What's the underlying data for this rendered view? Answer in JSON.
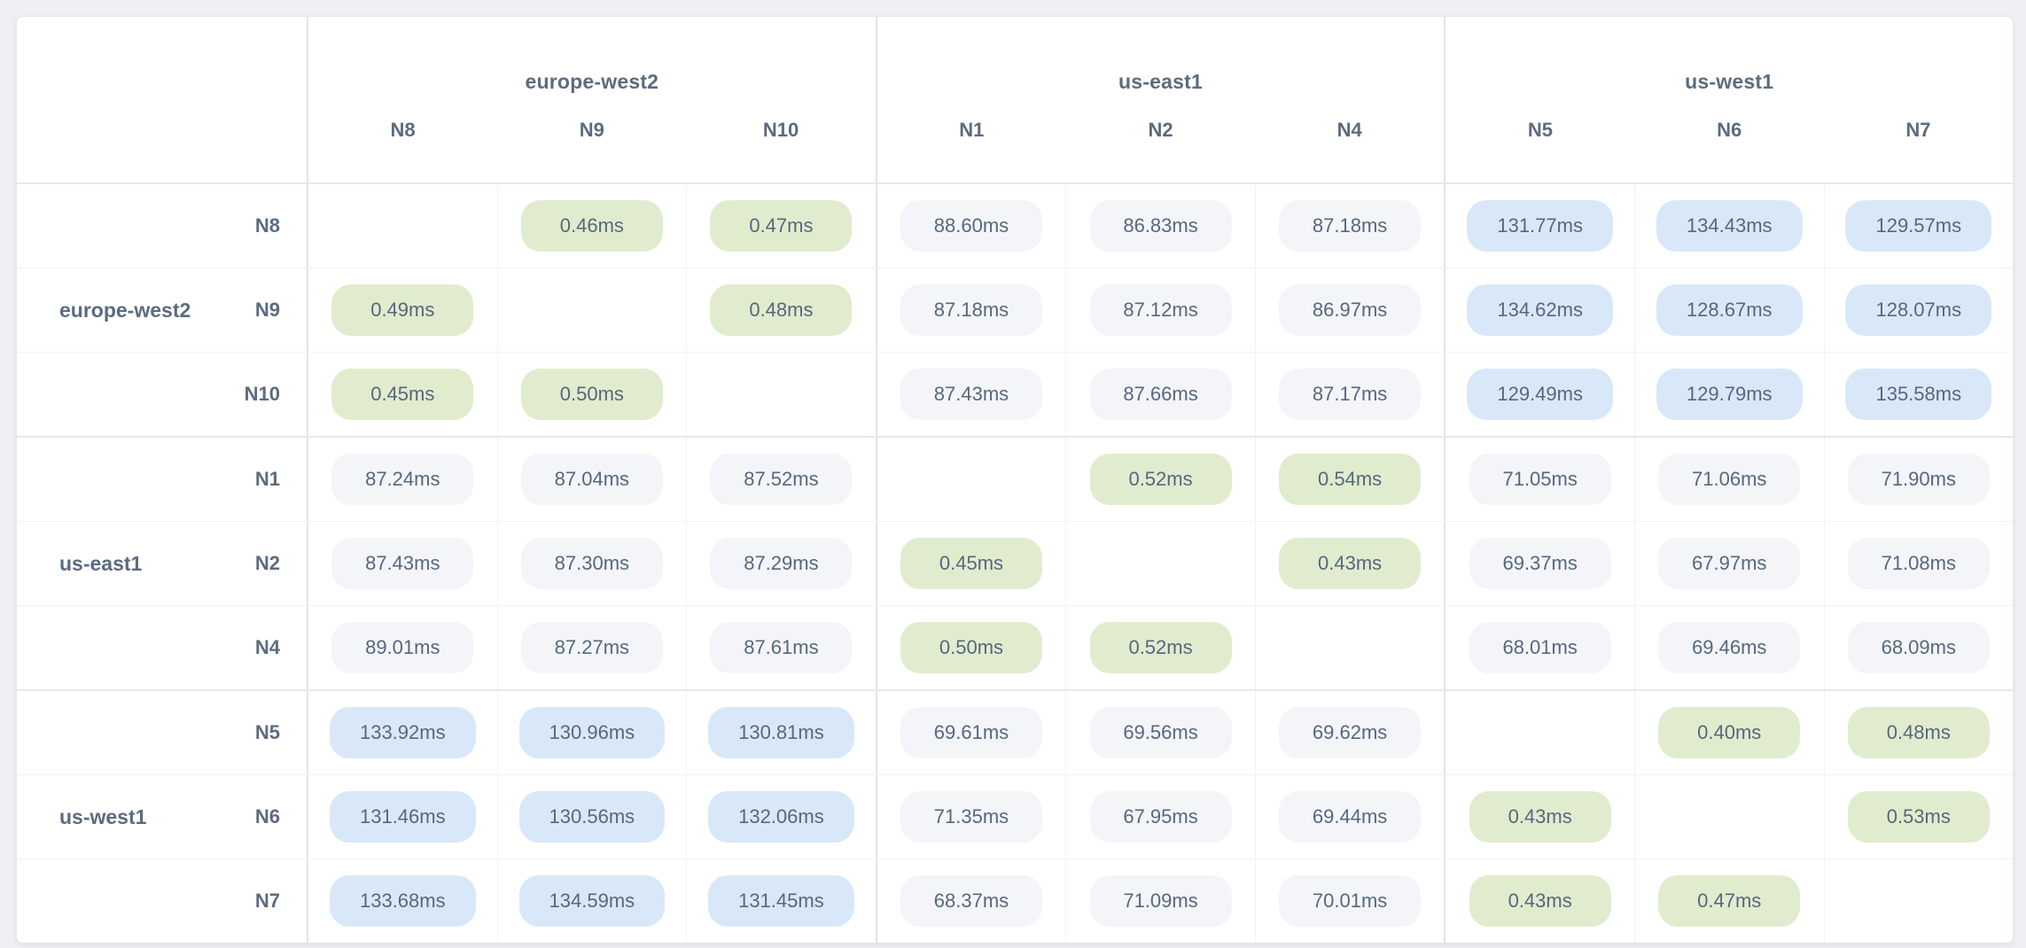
{
  "page": {
    "background": "#eef0f5",
    "card_background": "#ffffff"
  },
  "matrix": {
    "unit_suffix": "ms",
    "groups": [
      {
        "label": "europe-west2",
        "nodes": [
          "N8",
          "N9",
          "N10"
        ]
      },
      {
        "label": "us-east1",
        "nodes": [
          "N1",
          "N2",
          "N4"
        ]
      },
      {
        "label": "us-west1",
        "nodes": [
          "N5",
          "N6",
          "N7"
        ]
      }
    ],
    "colors": {
      "same_region_pill": "#e1ecce",
      "medium_latency_pill": "#f3f5f9",
      "high_latency_pill": "#d9e8f8",
      "text": "#57677e"
    }
  },
  "chart_data": {
    "type": "heatmap",
    "unit": "ms",
    "col_nodes": [
      "N8",
      "N9",
      "N10",
      "N1",
      "N2",
      "N4",
      "N5",
      "N6",
      "N7"
    ],
    "row_nodes": [
      "N8",
      "N9",
      "N10",
      "N1",
      "N2",
      "N4",
      "N5",
      "N6",
      "N7"
    ],
    "col_group_labels": [
      "europe-west2",
      "us-east1",
      "us-west1"
    ],
    "row_group_labels": [
      "europe-west2",
      "us-east1",
      "us-west1"
    ],
    "nodes_per_group": 3,
    "values": [
      [
        null,
        0.46,
        0.47,
        88.6,
        86.83,
        87.18,
        131.77,
        134.43,
        129.57
      ],
      [
        0.49,
        null,
        0.48,
        87.18,
        87.12,
        86.97,
        134.62,
        128.67,
        128.07
      ],
      [
        0.45,
        0.5,
        null,
        87.43,
        87.66,
        87.17,
        129.49,
        129.79,
        135.58
      ],
      [
        87.24,
        87.04,
        87.52,
        null,
        0.52,
        0.54,
        71.05,
        71.06,
        71.9
      ],
      [
        87.43,
        87.3,
        87.29,
        0.45,
        null,
        0.43,
        69.37,
        67.97,
        71.08
      ],
      [
        89.01,
        87.27,
        87.61,
        0.5,
        0.52,
        null,
        68.01,
        69.46,
        68.09
      ],
      [
        133.92,
        130.96,
        130.81,
        69.61,
        69.56,
        69.62,
        null,
        0.4,
        0.48
      ],
      [
        131.46,
        130.56,
        132.06,
        71.35,
        67.95,
        69.44,
        0.43,
        null,
        0.53
      ],
      [
        133.68,
        134.59,
        131.45,
        68.37,
        71.09,
        70.01,
        0.43,
        0.47,
        null
      ]
    ],
    "value_tiers": {
      "low": "value < 1ms : green (same region)",
      "mid": "1ms - 100ms : light gray",
      "high": "> 100ms : light blue"
    }
  }
}
